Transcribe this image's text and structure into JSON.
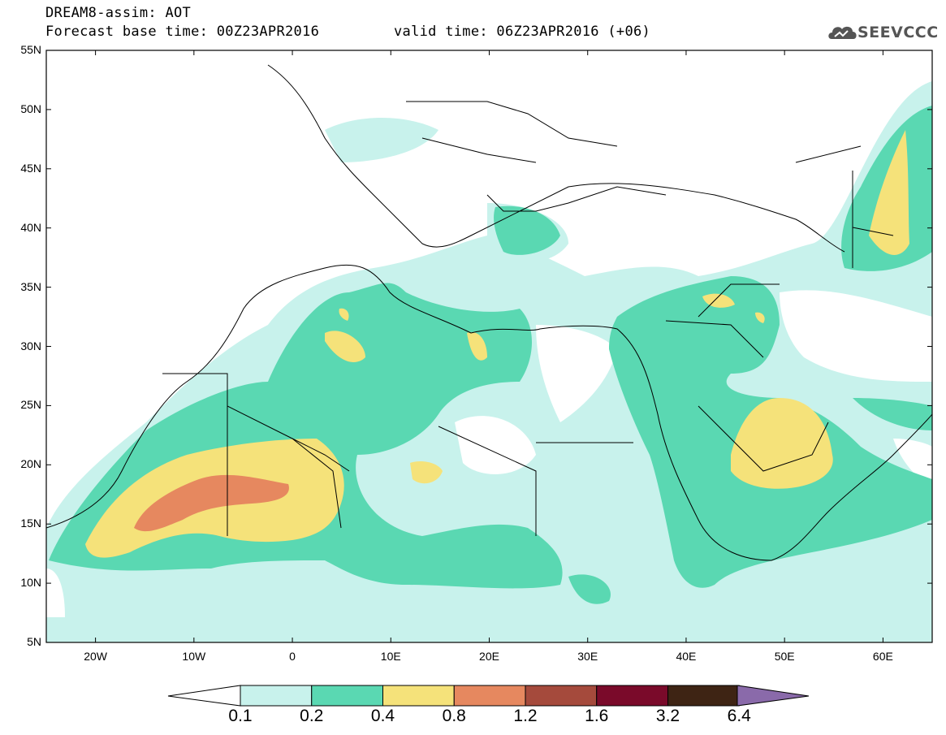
{
  "header": {
    "title": "DREAM8-assim: AOT",
    "base_time": "Forecast base time: 00Z23APR2016",
    "valid_time": "valid time: 06Z23APR2016 (+06)"
  },
  "logo": {
    "name": "cloud-logo-icon",
    "text": "SEEVCCC"
  },
  "map": {
    "projection": "lat-lon",
    "lon_range": [
      -25,
      65
    ],
    "lat_range": [
      5,
      55
    ],
    "lat_labels": [
      "55N",
      "50N",
      "45N",
      "40N",
      "35N",
      "30N",
      "25N",
      "20N",
      "15N",
      "10N",
      "5N"
    ],
    "lon_labels": [
      "20W",
      "10W",
      "0",
      "10E",
      "20E",
      "30E",
      "40E",
      "50E",
      "60E"
    ]
  },
  "colorbar": {
    "thresholds": [
      "0.1",
      "0.2",
      "0.4",
      "0.8",
      "1.2",
      "1.6",
      "3.2",
      "6.4"
    ],
    "colors": [
      "#c8f2ec",
      "#5ad8b2",
      "#f5e27a",
      "#e6885f",
      "#a54a3c",
      "#7a0a2a",
      "#3e2414",
      "#8a6aaa"
    ],
    "under_color": "#ffffff",
    "over_color": "#8a6aaa"
  }
}
